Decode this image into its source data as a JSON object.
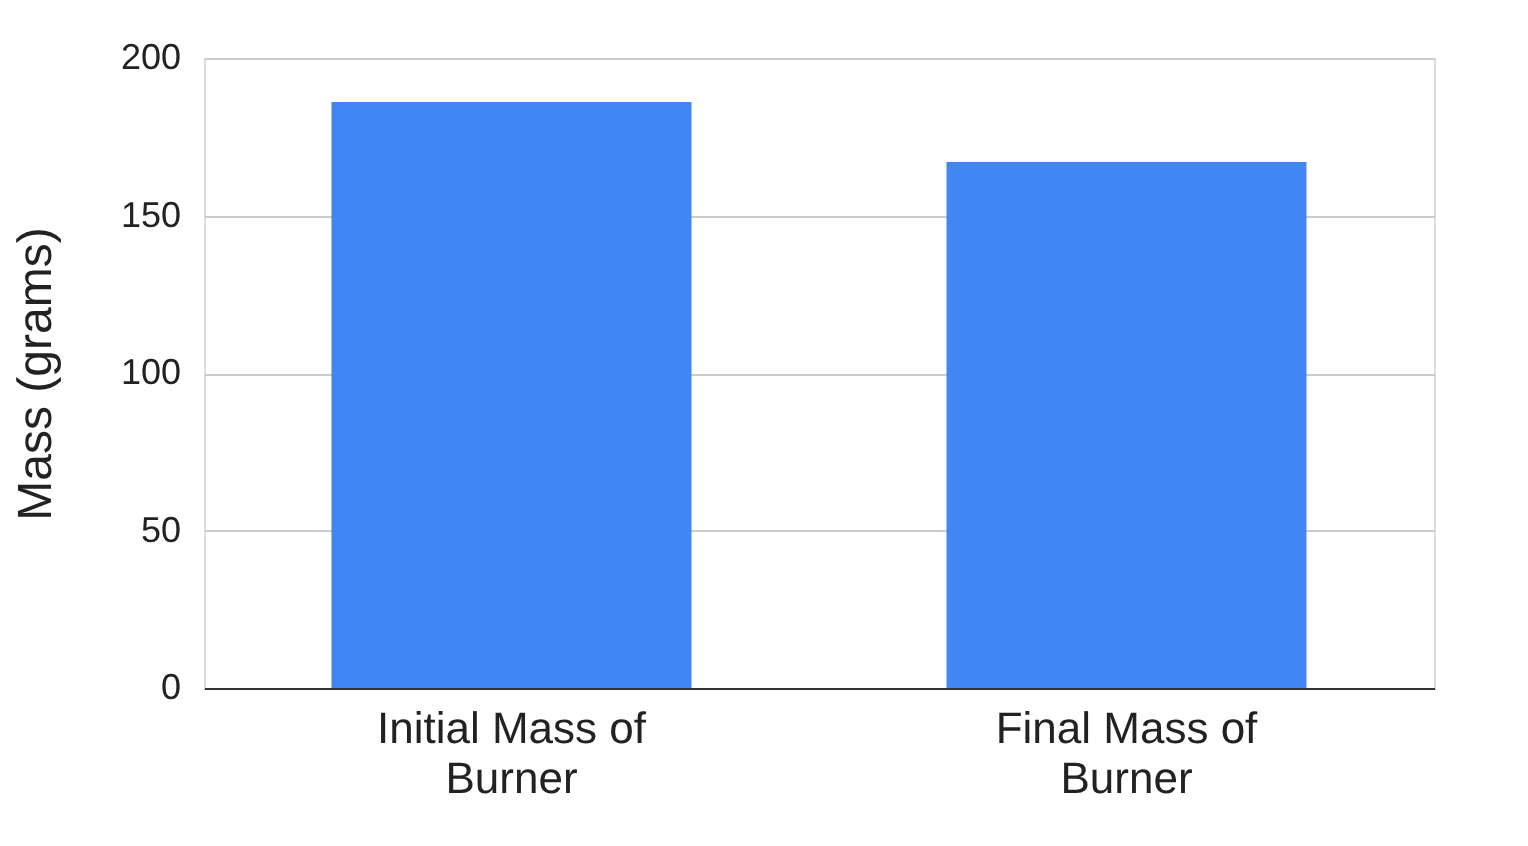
{
  "chart_data": {
    "type": "bar",
    "ylabel": "Mass (grams)",
    "categories": [
      "Initial Mass of Burner",
      "Final Mass of Burner"
    ],
    "series": [
      {
        "color": "#4285f4",
        "values": [
          186,
          167
        ]
      }
    ],
    "ylim": [
      0,
      200
    ],
    "yticks": [
      0,
      50,
      100,
      150,
      200
    ],
    "grid": "y"
  }
}
